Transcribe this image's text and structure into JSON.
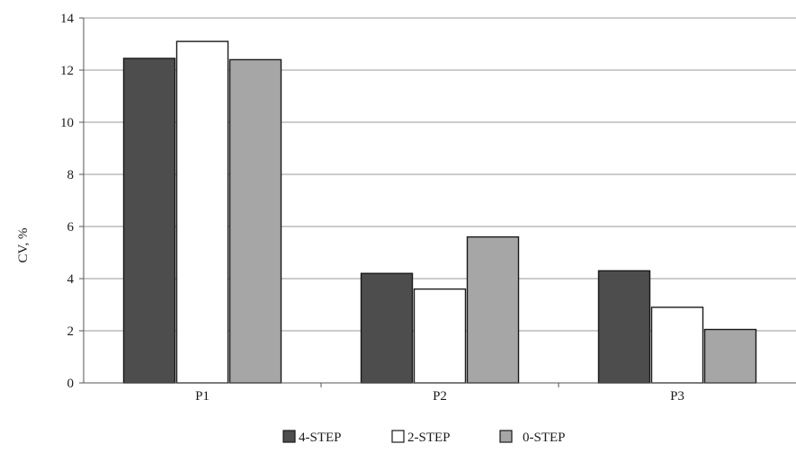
{
  "chart_data": {
    "type": "bar",
    "title": "",
    "xlabel": "",
    "ylabel": "CV, %",
    "ylim": [
      0,
      14
    ],
    "yticks": [
      0,
      2,
      4,
      6,
      8,
      10,
      12,
      14
    ],
    "grid": true,
    "legend_position": "bottom",
    "categories": [
      "P1",
      "P2",
      "P3"
    ],
    "series": [
      {
        "name": "4-STEP",
        "values": [
          12.45,
          4.2,
          4.3
        ],
        "color": "#4d4d4d"
      },
      {
        "name": "2-STEP",
        "values": [
          13.1,
          3.6,
          2.9
        ],
        "color": "#ffffff"
      },
      {
        "name": "0-STEP",
        "values": [
          12.4,
          5.6,
          2.05
        ],
        "color": "#a6a6a6"
      }
    ],
    "colors": {
      "grid": "#9a9a9a",
      "bar_stroke": "#1a1a1a",
      "axis": "#555555"
    }
  }
}
